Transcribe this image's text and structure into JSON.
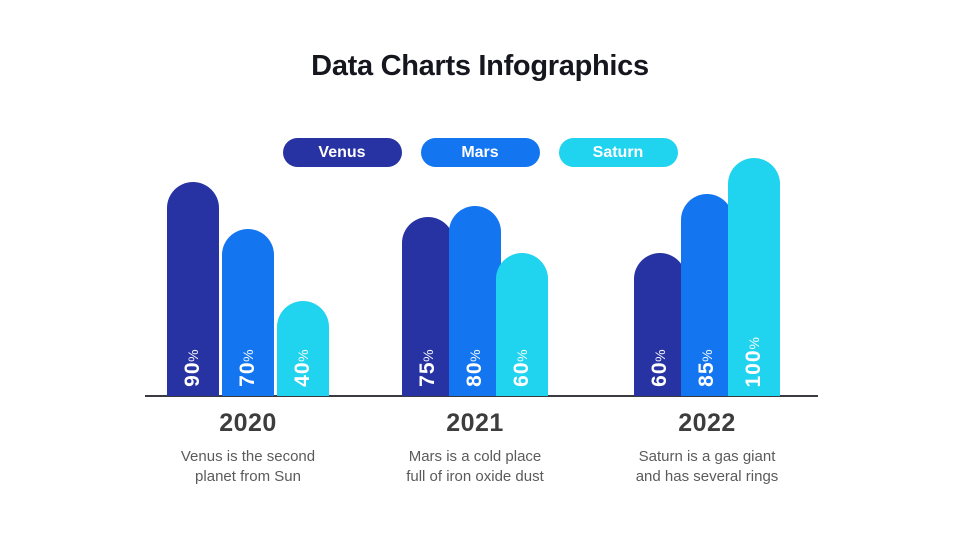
{
  "title": "Data Charts Infographics",
  "colors": {
    "venus": "#2733a3",
    "mars": "#1376f0",
    "saturn": "#20d3ee",
    "title_text": "#16161e",
    "year_text": "#3d3d3d",
    "caption_text": "#5b5b5b",
    "axis_line": "#3a3b41",
    "bar_label_text": "#ffffff"
  },
  "legend": [
    {
      "label": "Venus",
      "color": "#2733a3"
    },
    {
      "label": "Mars",
      "color": "#1376f0"
    },
    {
      "label": "Saturn",
      "color": "#20d3ee"
    }
  ],
  "chart_data": {
    "type": "bar",
    "title": "Data Charts Infographics",
    "categories": [
      "2020",
      "2021",
      "2022"
    ],
    "series": [
      {
        "name": "Venus",
        "color": "#2733a3",
        "values": [
          90,
          75,
          60
        ]
      },
      {
        "name": "Mars",
        "color": "#1376f0",
        "values": [
          70,
          80,
          85
        ]
      },
      {
        "name": "Saturn",
        "color": "#20d3ee",
        "values": [
          40,
          60,
          100
        ]
      }
    ],
    "bar_labels": [
      [
        "90%",
        "70%",
        "40%"
      ],
      [
        "75%",
        "80%",
        "60%"
      ],
      [
        "60%",
        "85%",
        "100%"
      ]
    ],
    "value_unit": "%",
    "ylim": [
      0,
      100
    ],
    "grid": false,
    "legend_position": "top",
    "captions": [
      "Venus is the second\nplanet from Sun",
      "Mars is a cold place\nfull of iron oxide dust",
      "Saturn is a gas giant\nand has several rings"
    ]
  }
}
